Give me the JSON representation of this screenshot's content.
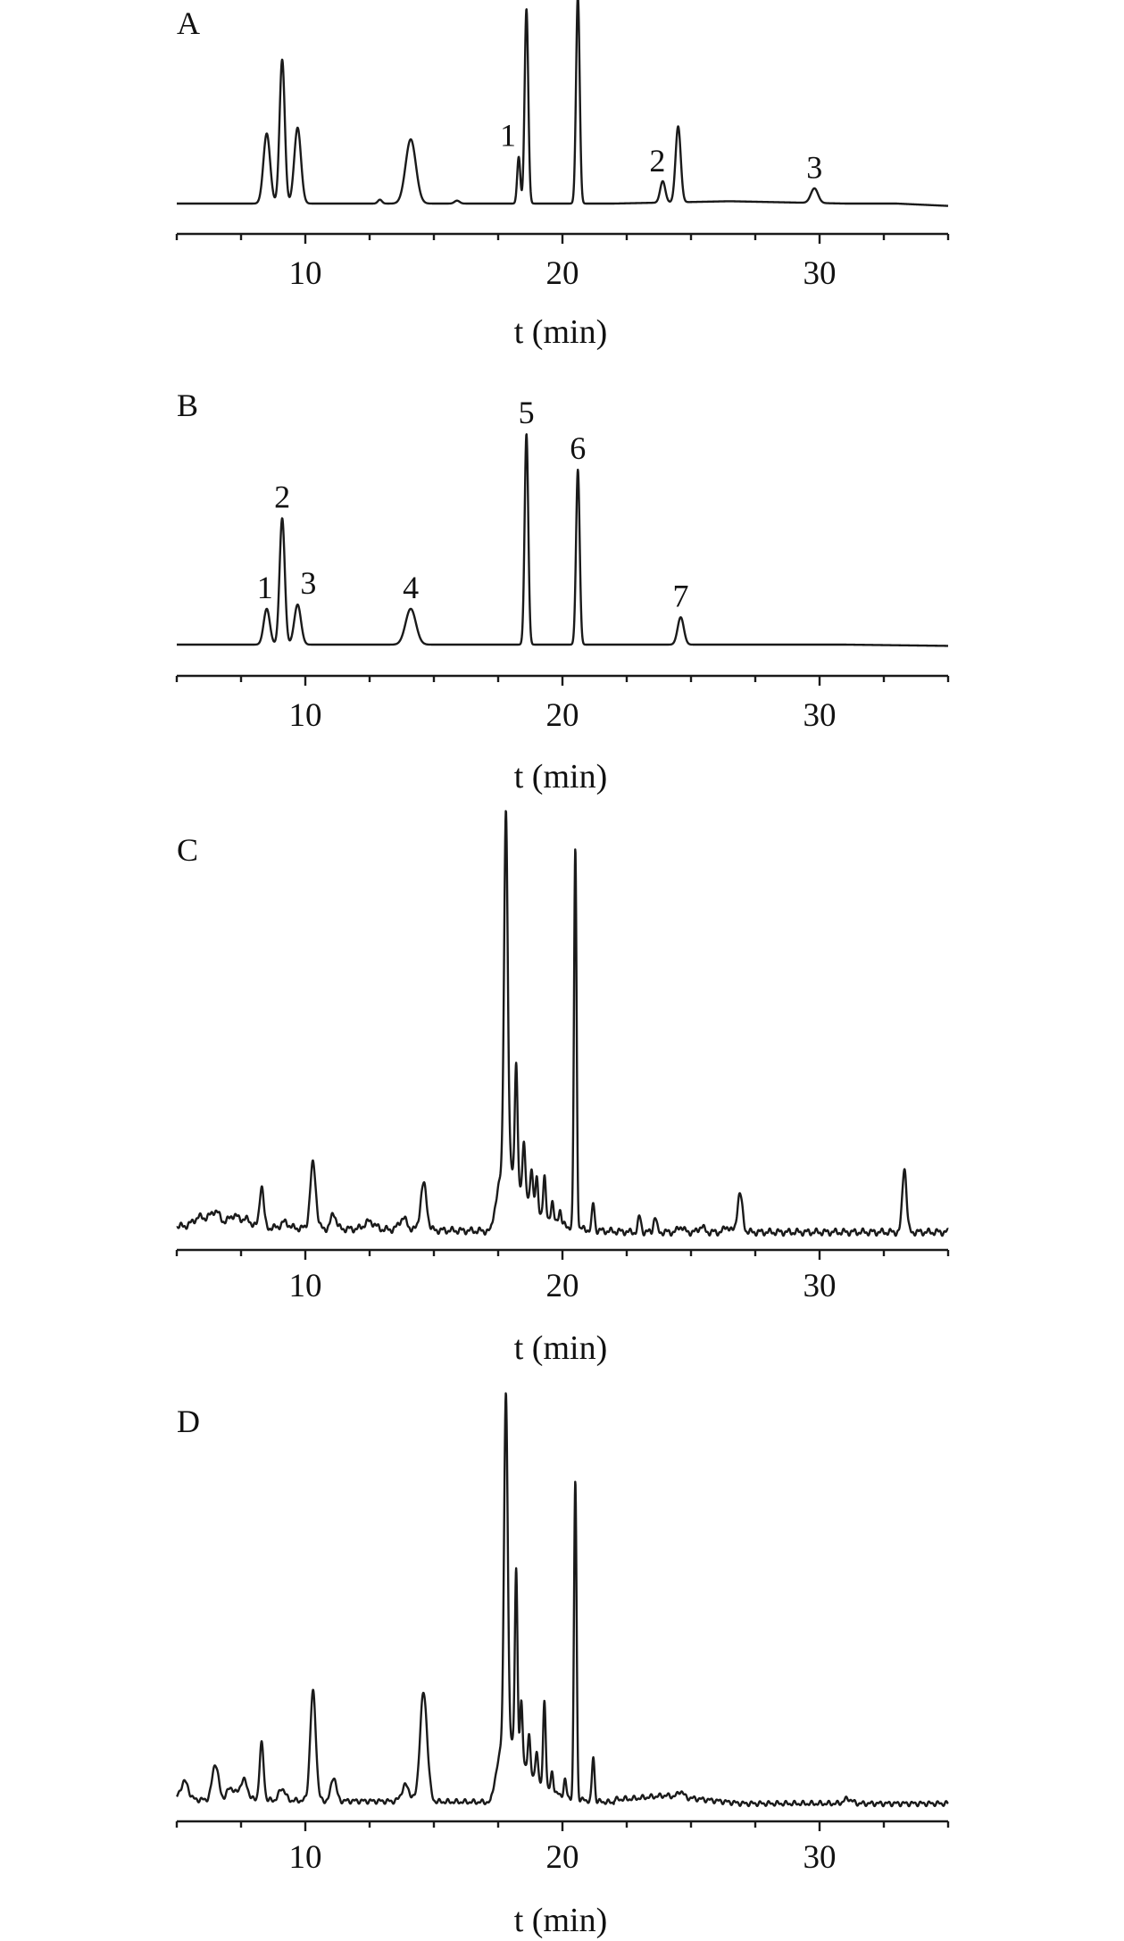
{
  "chart_data": [
    {
      "type": "line",
      "panel_label": "A",
      "xlabel": "t (min)",
      "xlim": [
        5,
        35
      ],
      "xticks": [
        10,
        20,
        30
      ],
      "colors": {
        "trace": "#1a1a1a"
      },
      "peaks": [
        {
          "t": 8.5,
          "h": 0.36,
          "w": 0.13
        },
        {
          "t": 9.1,
          "h": 0.74,
          "w": 0.1
        },
        {
          "t": 9.7,
          "h": 0.39,
          "w": 0.13
        },
        {
          "t": 12.9,
          "h": 0.02,
          "w": 0.08
        },
        {
          "t": 14.1,
          "h": 0.33,
          "w": 0.2
        },
        {
          "t": 15.9,
          "h": 0.015,
          "w": 0.1
        },
        {
          "t": 18.3,
          "h": 0.24,
          "w": 0.06
        },
        {
          "t": 18.6,
          "h": 1.0,
          "w": 0.07
        },
        {
          "t": 20.6,
          "h": 1.07,
          "w": 0.07
        },
        {
          "t": 23.9,
          "h": 0.11,
          "w": 0.1
        },
        {
          "t": 24.5,
          "h": 0.39,
          "w": 0.1
        },
        {
          "t": 29.8,
          "h": 0.075,
          "w": 0.14
        }
      ],
      "annotations": [
        {
          "label": "1",
          "t": 18.3,
          "h": 0.24
        },
        {
          "label": "2",
          "t": 23.9,
          "h": 0.11
        },
        {
          "label": "3",
          "t": 29.8,
          "h": 0.075
        }
      ]
    },
    {
      "type": "line",
      "panel_label": "B",
      "xlabel": "t (min)",
      "xlim": [
        5,
        35
      ],
      "xticks": [
        10,
        20,
        30
      ],
      "colors": {
        "trace": "#1a1a1a"
      },
      "peaks": [
        {
          "t": 8.5,
          "h": 0.17,
          "w": 0.12
        },
        {
          "t": 9.1,
          "h": 0.6,
          "w": 0.1
        },
        {
          "t": 9.7,
          "h": 0.19,
          "w": 0.13
        },
        {
          "t": 14.1,
          "h": 0.17,
          "w": 0.2
        },
        {
          "t": 18.6,
          "h": 1.0,
          "w": 0.07
        },
        {
          "t": 20.6,
          "h": 0.83,
          "w": 0.07
        },
        {
          "t": 24.6,
          "h": 0.13,
          "w": 0.12
        }
      ],
      "annotations": [
        {
          "label": "1",
          "t": 8.5,
          "h": 0.17
        },
        {
          "label": "2",
          "t": 9.1,
          "h": 0.6
        },
        {
          "label": "3",
          "t": 9.7,
          "h": 0.19
        },
        {
          "label": "4",
          "t": 14.1,
          "h": 0.17
        },
        {
          "label": "5",
          "t": 18.6,
          "h": 1.0
        },
        {
          "label": "6",
          "t": 20.6,
          "h": 0.83
        },
        {
          "label": "7",
          "t": 24.6,
          "h": 0.13
        }
      ]
    },
    {
      "type": "line",
      "panel_label": "C",
      "xlabel": "t (min)",
      "xlim": [
        5,
        35
      ],
      "xticks": [
        10,
        20,
        30
      ],
      "colors": {
        "trace": "#1a1a1a"
      },
      "hump": {
        "t_start": 17.2,
        "t_peak": 17.8,
        "t_end": 22.5,
        "h": 0.22
      },
      "peaks": [
        {
          "t": 5.9,
          "h": 0.025,
          "w": 0.25
        },
        {
          "t": 6.5,
          "h": 0.04,
          "w": 0.2
        },
        {
          "t": 7.2,
          "h": 0.03,
          "w": 0.2
        },
        {
          "t": 7.7,
          "h": 0.02,
          "w": 0.2
        },
        {
          "t": 8.3,
          "h": 0.11,
          "w": 0.08
        },
        {
          "t": 9.2,
          "h": 0.015,
          "w": 0.15
        },
        {
          "t": 10.3,
          "h": 0.17,
          "w": 0.11
        },
        {
          "t": 11.1,
          "h": 0.04,
          "w": 0.1
        },
        {
          "t": 12.5,
          "h": 0.02,
          "w": 0.2
        },
        {
          "t": 13.8,
          "h": 0.03,
          "w": 0.15
        },
        {
          "t": 14.6,
          "h": 0.12,
          "w": 0.12
        },
        {
          "t": 17.8,
          "h": 0.88,
          "w": 0.07
        },
        {
          "t": 18.2,
          "h": 0.3,
          "w": 0.05
        },
        {
          "t": 18.5,
          "h": 0.14,
          "w": 0.05
        },
        {
          "t": 18.8,
          "h": 0.1,
          "w": 0.05
        },
        {
          "t": 19.0,
          "h": 0.08,
          "w": 0.05
        },
        {
          "t": 19.3,
          "h": 0.1,
          "w": 0.05
        },
        {
          "t": 19.6,
          "h": 0.05,
          "w": 0.05
        },
        {
          "t": 19.9,
          "h": 0.04,
          "w": 0.05
        },
        {
          "t": 20.5,
          "h": 0.99,
          "w": 0.05
        },
        {
          "t": 21.2,
          "h": 0.07,
          "w": 0.05
        },
        {
          "t": 23.0,
          "h": 0.04,
          "w": 0.06
        },
        {
          "t": 23.6,
          "h": 0.04,
          "w": 0.06
        },
        {
          "t": 24.6,
          "h": 0.015,
          "w": 0.1
        },
        {
          "t": 25.4,
          "h": 0.015,
          "w": 0.1
        },
        {
          "t": 26.4,
          "h": 0.015,
          "w": 0.1
        },
        {
          "t": 26.9,
          "h": 0.1,
          "w": 0.1
        },
        {
          "t": 33.3,
          "h": 0.17,
          "w": 0.08
        }
      ],
      "annotations": []
    },
    {
      "type": "line",
      "panel_label": "D",
      "xlabel": "t (min)",
      "xlim": [
        5,
        35
      ],
      "xticks": [
        10,
        20,
        30
      ],
      "colors": {
        "trace": "#1a1a1a"
      },
      "hump": {
        "t_start": 17.2,
        "t_peak": 17.8,
        "t_end": 22.5,
        "h": 0.2
      },
      "peaks": [
        {
          "t": 5.3,
          "h": 0.045,
          "w": 0.15
        },
        {
          "t": 6.5,
          "h": 0.09,
          "w": 0.12
        },
        {
          "t": 7.1,
          "h": 0.03,
          "w": 0.15
        },
        {
          "t": 7.6,
          "h": 0.05,
          "w": 0.15
        },
        {
          "t": 8.3,
          "h": 0.14,
          "w": 0.08
        },
        {
          "t": 9.1,
          "h": 0.03,
          "w": 0.12
        },
        {
          "t": 10.3,
          "h": 0.27,
          "w": 0.11
        },
        {
          "t": 11.1,
          "h": 0.06,
          "w": 0.1
        },
        {
          "t": 13.9,
          "h": 0.04,
          "w": 0.15
        },
        {
          "t": 14.6,
          "h": 0.27,
          "w": 0.14
        },
        {
          "t": 17.8,
          "h": 0.82,
          "w": 0.07
        },
        {
          "t": 18.2,
          "h": 0.45,
          "w": 0.05
        },
        {
          "t": 18.4,
          "h": 0.15,
          "w": 0.05
        },
        {
          "t": 18.7,
          "h": 0.1,
          "w": 0.05
        },
        {
          "t": 19.0,
          "h": 0.08,
          "w": 0.05
        },
        {
          "t": 19.3,
          "h": 0.22,
          "w": 0.05
        },
        {
          "t": 19.6,
          "h": 0.05,
          "w": 0.05
        },
        {
          "t": 20.1,
          "h": 0.04,
          "w": 0.05
        },
        {
          "t": 20.5,
          "h": 0.79,
          "w": 0.05
        },
        {
          "t": 21.2,
          "h": 0.11,
          "w": 0.05
        },
        {
          "t": 24.6,
          "h": 0.015,
          "w": 0.1
        },
        {
          "t": 31.1,
          "h": 0.012,
          "w": 0.15
        }
      ],
      "annotations": []
    }
  ]
}
